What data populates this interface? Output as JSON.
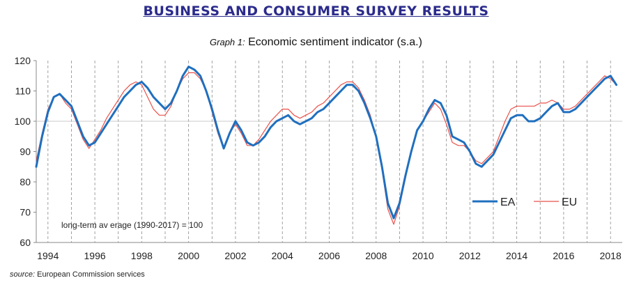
{
  "header": {
    "title": "BUSINESS AND CONSUMER SURVEY RESULTS",
    "graph_label": "Graph 1:",
    "graph_title": "Economic sentiment indicator (s.a.)"
  },
  "footer": {
    "source_label": "source:",
    "source_text": "European Commission services"
  },
  "colors": {
    "ea": "#1f6fbf",
    "eu": "#e8514b",
    "grid": "#bdbdbd",
    "ref": "#c9c9c9",
    "axis": "#888888"
  },
  "chart_data": {
    "type": "line",
    "title": "Economic sentiment indicator (s.a.)",
    "xlabel": "",
    "ylabel": "",
    "xlim": [
      1993.5,
      2018.5
    ],
    "ylim": [
      60,
      120
    ],
    "yticks": [
      60,
      70,
      80,
      90,
      100,
      110,
      120
    ],
    "xticks": [
      1994,
      1996,
      1998,
      2000,
      2002,
      2004,
      2006,
      2008,
      2010,
      2012,
      2014,
      2016,
      2018
    ],
    "xtick_labels": [
      "1994",
      "1996",
      "1998",
      "2000",
      "2002",
      "2004",
      "2006",
      "2008",
      "2010",
      "2012",
      "2014",
      "2016",
      "2018"
    ],
    "reference_line": 100,
    "vertical_gridlines": "dashed, yearly",
    "annotation": "long-term av erage (1990-2017) = 100",
    "legend_position": "bottom-right",
    "series": [
      {
        "name": "EA",
        "x": [
          1993.5,
          1993.75,
          1994.0,
          1994.25,
          1994.5,
          1994.75,
          1995.0,
          1995.25,
          1995.5,
          1995.75,
          1996.0,
          1996.25,
          1996.5,
          1996.75,
          1997.0,
          1997.25,
          1997.5,
          1997.75,
          1998.0,
          1998.25,
          1998.5,
          1998.75,
          1999.0,
          1999.25,
          1999.5,
          1999.75,
          2000.0,
          2000.25,
          2000.5,
          2000.75,
          2001.0,
          2001.25,
          2001.5,
          2001.75,
          2002.0,
          2002.25,
          2002.5,
          2002.75,
          2003.0,
          2003.25,
          2003.5,
          2003.75,
          2004.0,
          2004.25,
          2004.5,
          2004.75,
          2005.0,
          2005.25,
          2005.5,
          2005.75,
          2006.0,
          2006.25,
          2006.5,
          2006.75,
          2007.0,
          2007.25,
          2007.5,
          2007.75,
          2008.0,
          2008.25,
          2008.5,
          2008.75,
          2009.0,
          2009.25,
          2009.5,
          2009.75,
          2010.0,
          2010.25,
          2010.5,
          2010.75,
          2011.0,
          2011.25,
          2011.5,
          2011.75,
          2012.0,
          2012.25,
          2012.5,
          2012.75,
          2013.0,
          2013.25,
          2013.5,
          2013.75,
          2014.0,
          2014.25,
          2014.5,
          2014.75,
          2015.0,
          2015.25,
          2015.5,
          2015.75,
          2016.0,
          2016.25,
          2016.5,
          2016.75,
          2017.0,
          2017.25,
          2017.5,
          2017.75,
          2018.0,
          2018.25
        ],
        "values": [
          85,
          95,
          103,
          108,
          109,
          107,
          105,
          100,
          95,
          92,
          93,
          96,
          99,
          102,
          105,
          108,
          110,
          112,
          113,
          111,
          108,
          106,
          104,
          106,
          110,
          115,
          118,
          117,
          115,
          110,
          104,
          97,
          91,
          96,
          100,
          97,
          93,
          92,
          93,
          95,
          98,
          100,
          101,
          102,
          100,
          99,
          100,
          101,
          103,
          104,
          106,
          108,
          110,
          112,
          112,
          110,
          106,
          101,
          95,
          85,
          73,
          68,
          73,
          82,
          90,
          97,
          100,
          104,
          107,
          106,
          102,
          95,
          94,
          93,
          90,
          86,
          85,
          87,
          89,
          93,
          97,
          101,
          102,
          102,
          100,
          100,
          101,
          103,
          105,
          106,
          103,
          103,
          104,
          106,
          108,
          110,
          112,
          114,
          115,
          112
        ]
      },
      {
        "name": "EU",
        "x": [
          1993.5,
          1993.75,
          1994.0,
          1994.25,
          1994.5,
          1994.75,
          1995.0,
          1995.25,
          1995.5,
          1995.75,
          1996.0,
          1996.25,
          1996.5,
          1996.75,
          1997.0,
          1997.25,
          1997.5,
          1997.75,
          1998.0,
          1998.25,
          1998.5,
          1998.75,
          1999.0,
          1999.25,
          1999.5,
          1999.75,
          2000.0,
          2000.25,
          2000.5,
          2000.75,
          2001.0,
          2001.25,
          2001.5,
          2001.75,
          2002.0,
          2002.25,
          2002.5,
          2002.75,
          2003.0,
          2003.25,
          2003.5,
          2003.75,
          2004.0,
          2004.25,
          2004.5,
          2004.75,
          2005.0,
          2005.25,
          2005.5,
          2005.75,
          2006.0,
          2006.25,
          2006.5,
          2006.75,
          2007.0,
          2007.25,
          2007.5,
          2007.75,
          2008.0,
          2008.25,
          2008.5,
          2008.75,
          2009.0,
          2009.25,
          2009.5,
          2009.75,
          2010.0,
          2010.25,
          2010.5,
          2010.75,
          2011.0,
          2011.25,
          2011.5,
          2011.75,
          2012.0,
          2012.25,
          2012.5,
          2012.75,
          2013.0,
          2013.25,
          2013.5,
          2013.75,
          2014.0,
          2014.25,
          2014.5,
          2014.75,
          2015.0,
          2015.25,
          2015.5,
          2015.75,
          2016.0,
          2016.25,
          2016.5,
          2016.75,
          2017.0,
          2017.25,
          2017.5,
          2017.75,
          2018.0,
          2018.25
        ],
        "values": [
          87,
          96,
          104,
          108,
          109,
          106,
          104,
          99,
          94,
          91,
          94,
          97,
          101,
          104,
          107,
          110,
          112,
          113,
          112,
          108,
          104,
          102,
          102,
          105,
          110,
          114,
          116,
          116,
          114,
          110,
          103,
          96,
          91,
          96,
          99,
          96,
          92,
          92,
          94,
          97,
          100,
          102,
          104,
          104,
          102,
          101,
          102,
          103,
          105,
          106,
          108,
          110,
          112,
          113,
          113,
          111,
          107,
          102,
          95,
          84,
          71,
          66,
          72,
          81,
          90,
          97,
          100,
          103,
          106,
          104,
          99,
          93,
          92,
          92,
          90,
          87,
          86,
          88,
          90,
          95,
          100,
          104,
          105,
          105,
          105,
          105,
          106,
          106,
          107,
          106,
          104,
          104,
          105,
          107,
          109,
          111,
          113,
          115,
          114,
          112
        ]
      }
    ]
  }
}
